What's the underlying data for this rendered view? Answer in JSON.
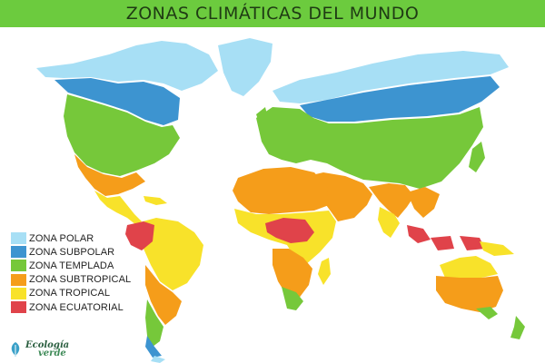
{
  "title": "ZONAS CLIMÁTICAS DEL MUNDO",
  "colors": {
    "header": "#6ccb3e",
    "polar": "#a7dff5",
    "subpolar": "#3d94d0",
    "templada": "#76c83a",
    "subtropical": "#f59d1a",
    "tropical": "#f8e22a",
    "ecuatorial": "#e0434a"
  },
  "legend": [
    {
      "label": "ZONA POLAR",
      "color": "#a7dff5"
    },
    {
      "label": "ZONA SUBPOLAR",
      "color": "#3d94d0"
    },
    {
      "label": "ZONA TEMPLADA",
      "color": "#76c83a"
    },
    {
      "label": "ZONA SUBTROPICAL",
      "color": "#f59d1a"
    },
    {
      "label": "ZONA TROPICAL",
      "color": "#f8e22a"
    },
    {
      "label": "ZONA ECUATORIAL",
      "color": "#e0434a"
    }
  ],
  "logo": {
    "line1": "Ecología",
    "line2": "verde",
    "icon": "leaf-icon"
  }
}
